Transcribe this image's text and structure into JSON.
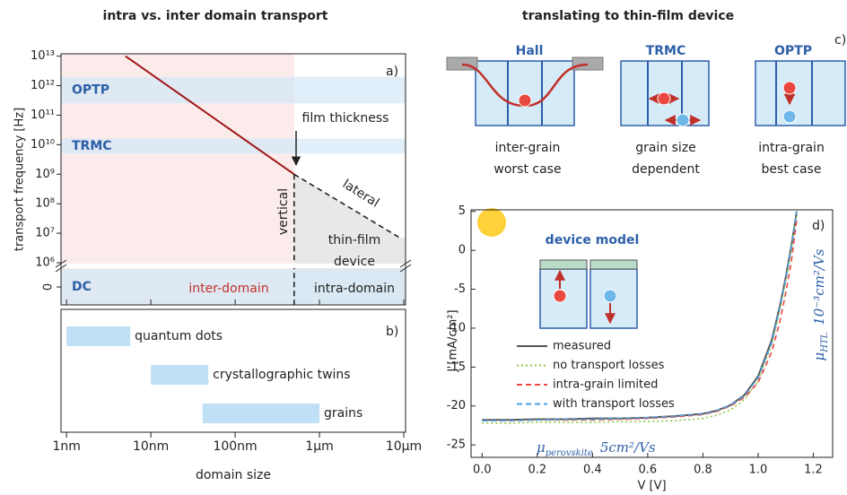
{
  "figure": {
    "title_left": "intra vs. inter domain transport",
    "title_right": "translating to thin-film device"
  },
  "diagram": {
    "panel": "c)",
    "items": [
      {
        "method": "Hall",
        "caption": [
          "inter-grain",
          "worst case"
        ]
      },
      {
        "method": "TRMC",
        "caption": [
          "grain size",
          "dependent"
        ]
      },
      {
        "method": "OPTP",
        "caption": [
          "intra-grain",
          "best case"
        ]
      }
    ]
  },
  "chart_data": [
    {
      "type": "line",
      "panel": "a)",
      "y_label": "transport frequency [Hz]",
      "log_y": true,
      "ylim": [
        1000000,
        12000000000000
      ],
      "yticks": [
        {
          "value": 10000000000000,
          "label": "10¹³"
        },
        {
          "value": 1000000000000,
          "label": "10¹²"
        },
        {
          "value": 100000000000,
          "label": "10¹¹"
        },
        {
          "value": 10000000000,
          "label": "10¹⁰"
        },
        {
          "value": 1000000000,
          "label": "10⁹"
        },
        {
          "value": 100000000,
          "label": "10⁸"
        },
        {
          "value": 10000000,
          "label": "10⁷"
        },
        {
          "value": 1000000,
          "label": "10⁶"
        },
        0
      ],
      "series": [
        {
          "color": "#a01818",
          "style": "solid",
          "x": [
            5,
            500
          ],
          "values": [
            10000000000000,
            1000000000
          ]
        },
        {
          "color": "#222222",
          "style": "dashed",
          "x": [
            500,
            500
          ],
          "values": [
            1000000000,
            0
          ]
        },
        {
          "color": "#222222",
          "style": "dashed",
          "x": [
            500,
            9000
          ],
          "values": [
            1000000000,
            7000000
          ]
        }
      ],
      "bands": [
        {
          "label": "OPTP",
          "range": [
            250000000000,
            2000000000000
          ]
        },
        {
          "label": "TRMC",
          "range": [
            5000000000,
            16000000000
          ]
        },
        {
          "label": "DC",
          "range": [
            0,
            0
          ]
        }
      ],
      "annotations": {
        "film_thickness": "film thickness",
        "vertical": "vertical",
        "lateral": "lateral",
        "thin_film": "thin-film",
        "device": "device",
        "intra_domain": "intra-domain",
        "inter_domain": "inter-domain"
      }
    },
    {
      "type": "range-bar",
      "panel": "b)",
      "x_label": "domain size",
      "log_x": true,
      "xlim": [
        0.86,
        10500
      ],
      "xticks": [
        {
          "value": 1,
          "label": "1nm"
        },
        {
          "value": 10,
          "label": "10nm"
        },
        {
          "value": 100,
          "label": "100nm"
        },
        {
          "value": 1000,
          "label": "1µm"
        },
        {
          "value": 10000,
          "label": "10µm"
        }
      ],
      "color": "#bfe0f5",
      "categories": [
        "quantum dots",
        "crystallographic twins",
        "grains"
      ],
      "ranges": [
        [
          1,
          5.7
        ],
        [
          10,
          48
        ],
        [
          41,
          1000
        ]
      ]
    },
    {
      "type": "line",
      "panel": "d)",
      "x_label": "V [V]",
      "y_label": "J [mA/cm²]",
      "xlim": [
        -0.04,
        1.27
      ],
      "ylim": [
        -26.6,
        5.2
      ],
      "xticks": [
        {
          "value": 0,
          "label": "0.0"
        },
        0.2,
        0.4,
        0.6,
        0.8,
        {
          "value": 1,
          "label": "1.0"
        },
        1.2
      ],
      "yticks": [
        5,
        0,
        -5,
        -10,
        -15,
        -20,
        -25
      ],
      "x": [
        0,
        0.1,
        0.2,
        0.3,
        0.4,
        0.5,
        0.6,
        0.7,
        0.8,
        0.85,
        0.9,
        0.95,
        1.0,
        1.05,
        1.08,
        1.1,
        1.12,
        1.14
      ],
      "series": [
        {
          "name": "measured",
          "color": "#555555",
          "style": "solid",
          "values": [
            -21.8,
            -21.8,
            -21.7,
            -21.7,
            -21.6,
            -21.6,
            -21.5,
            -21.3,
            -21,
            -20.6,
            -19.9,
            -18.6,
            -16.2,
            -11.5,
            -7,
            -3.5,
            0.5,
            5
          ]
        },
        {
          "name": "no transport losses",
          "color": "#8cc63f",
          "style": "dotted",
          "values": [
            -22.2,
            -22.2,
            -22.1,
            -22.1,
            -22.1,
            -22,
            -22,
            -21.9,
            -21.6,
            -21.2,
            -20.5,
            -19.2,
            -16.8,
            -12,
            -7.5,
            -4,
            0,
            5
          ]
        },
        {
          "name": "intra-grain limited",
          "color": "#e8483f",
          "style": "dashed",
          "values": [
            -21.9,
            -21.9,
            -21.8,
            -21.8,
            -21.8,
            -21.7,
            -21.6,
            -21.4,
            -21.1,
            -20.7,
            -20,
            -18.9,
            -17,
            -13,
            -9,
            -5.5,
            -1.5,
            4
          ]
        },
        {
          "name": "with transport losses",
          "color": "#4a9fe0",
          "style": "dashed",
          "values": [
            -21.9,
            -21.9,
            -21.8,
            -21.7,
            -21.7,
            -21.6,
            -21.5,
            -21.3,
            -21,
            -20.6,
            -19.9,
            -18.7,
            -16.4,
            -11.8,
            -7.2,
            -3.7,
            0.3,
            5
          ]
        }
      ],
      "annotations": {
        "device_model": "device model",
        "mobility_perovskite": [
          "μ",
          "perovskite",
          "5cm²/Vs"
        ],
        "mobility_htl": [
          "μ",
          "HTL",
          "10⁻³cm²/Vs"
        ]
      }
    }
  ]
}
